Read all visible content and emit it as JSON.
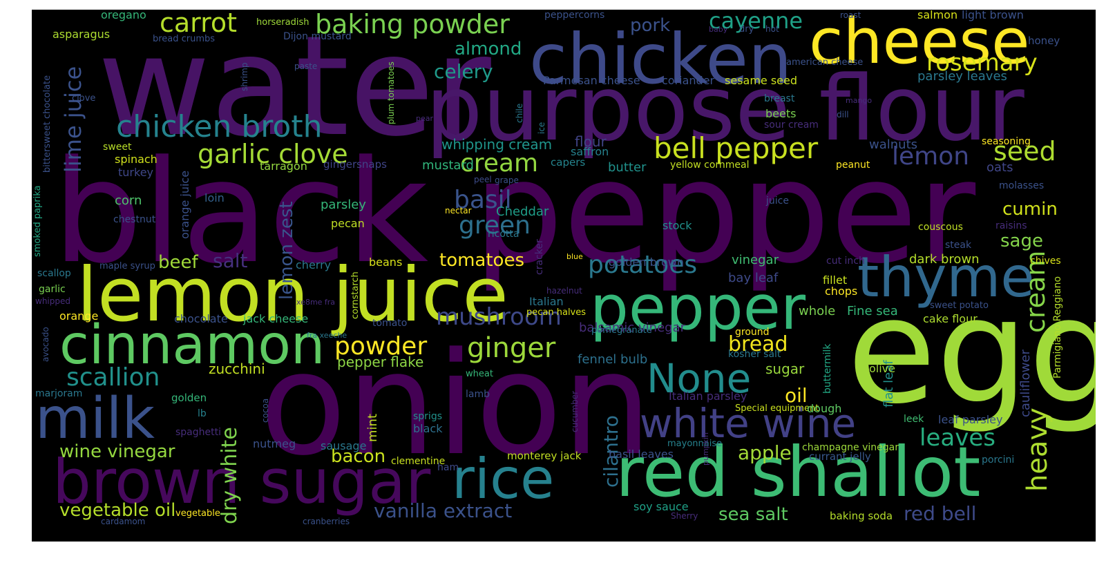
{
  "words": [
    {
      "text": "water",
      "color": "#471365"
    },
    {
      "text": "black pepper",
      "color": "#440154"
    },
    {
      "text": "onion",
      "color": "#440154"
    },
    {
      "text": "purpose flour",
      "color": "#481769"
    },
    {
      "text": "chicken",
      "color": "#3e4a89"
    },
    {
      "text": "cheese",
      "color": "#fde725"
    },
    {
      "text": "egg",
      "color": "#a0da39"
    },
    {
      "text": "lemon juice",
      "color": "#c2df23"
    },
    {
      "text": "cinnamon",
      "color": "#5ec962"
    },
    {
      "text": "thyme",
      "color": "#31688e"
    },
    {
      "text": "pepper",
      "color": "#35b779"
    },
    {
      "text": "red shallot",
      "color": "#3dbc74"
    },
    {
      "text": "brown sugar",
      "color": "#46085c"
    },
    {
      "text": "milk",
      "color": "#3b528b"
    },
    {
      "text": "rice",
      "color": "#26818e"
    },
    {
      "text": "white wine",
      "color": "#424186"
    },
    {
      "text": "None",
      "color": "#228d8d"
    },
    {
      "text": "chicken broth",
      "color": "#25838e"
    },
    {
      "text": "bell pepper",
      "color": "#c8e020"
    },
    {
      "text": "carrot",
      "color": "#b5de2b"
    },
    {
      "text": "baking powder",
      "color": "#7ad151"
    },
    {
      "text": "cayenne",
      "color": "#1fa187"
    },
    {
      "text": "rosemary",
      "color": "#d8e219"
    },
    {
      "text": "mushroom",
      "color": "#3e4989"
    },
    {
      "text": "ginger",
      "color": "#9dd93b"
    },
    {
      "text": "garlic clove",
      "color": "#a5db36"
    },
    {
      "text": "cream",
      "color": "#93d741"
    },
    {
      "text": "cream",
      "color": "#86d549"
    },
    {
      "text": "lemon",
      "color": "#404688"
    },
    {
      "text": "seed",
      "color": "#addc30"
    },
    {
      "text": "heavy",
      "color": "#addc30"
    },
    {
      "text": "potatoes",
      "color": "#2a788e"
    },
    {
      "text": "green",
      "color": "#2d708e"
    },
    {
      "text": "basil",
      "color": "#3a548c"
    },
    {
      "text": "powder",
      "color": "#fde725"
    },
    {
      "text": "scallion",
      "color": "#21918c"
    },
    {
      "text": "lime juice",
      "color": "#3b528b"
    },
    {
      "text": "lemon zest",
      "color": "#39558c"
    },
    {
      "text": "dry white",
      "color": "#7fd34e"
    },
    {
      "text": "cilantro",
      "color": "#2d708e"
    },
    {
      "text": "almond",
      "color": "#22a884"
    },
    {
      "text": "celery",
      "color": "#1f9a8a"
    },
    {
      "text": "pork",
      "color": "#3b528b"
    },
    {
      "text": "cumin",
      "color": "#d0e11c"
    },
    {
      "text": "sage",
      "color": "#84d44b"
    },
    {
      "text": "leaves",
      "color": "#28ae80"
    },
    {
      "text": "wine vinegar",
      "color": "#95d840"
    },
    {
      "text": "vegetable oil",
      "color": "#b5de2b"
    },
    {
      "text": "vanilla extract",
      "color": "#3b528b"
    },
    {
      "text": "sea salt",
      "color": "#5ec962"
    },
    {
      "text": "red bell",
      "color": "#3e4a89"
    },
    {
      "text": "bread",
      "color": "#f1e51d"
    },
    {
      "text": "oil",
      "color": "#fde725"
    },
    {
      "text": "apple",
      "color": "#a2da37"
    },
    {
      "text": "tomatoes",
      "color": "#fde725"
    },
    {
      "text": "beef",
      "color": "#a0da39"
    },
    {
      "text": "salt",
      "color": "#46307e"
    },
    {
      "text": "bacon",
      "color": "#cae11f"
    },
    {
      "text": "zucchini",
      "color": "#c2df23"
    },
    {
      "text": "pepper flake",
      "color": "#8ed645"
    },
    {
      "text": "balsamic vinegar",
      "color": "#472d7b"
    },
    {
      "text": "fennel bulb",
      "color": "#2d718e"
    },
    {
      "text": "sugar",
      "color": "#99d83d"
    },
    {
      "text": "whipping cream",
      "color": "#1f958b"
    },
    {
      "text": "flour",
      "color": "#414487"
    },
    {
      "text": "saffron",
      "color": "#26828e"
    },
    {
      "text": "butter",
      "color": "#20928c"
    },
    {
      "text": "capers",
      "color": "#25858e"
    },
    {
      "text": "mustard",
      "color": "#31b57b"
    },
    {
      "text": "tarragon",
      "color": "#94d840"
    },
    {
      "text": "gingersnaps",
      "color": "#404588"
    },
    {
      "text": "spinach",
      "color": "#d0e11c"
    },
    {
      "text": "turkey",
      "color": "#3f4788"
    },
    {
      "text": "sweet",
      "color": "#b8de29"
    },
    {
      "text": "corn",
      "color": "#4ec36b"
    },
    {
      "text": "loin",
      "color": "#34618d"
    },
    {
      "text": "parsley",
      "color": "#35b779"
    },
    {
      "text": "pecan",
      "color": "#c0df25"
    },
    {
      "text": "Cheddar",
      "color": "#1f9e89"
    },
    {
      "text": "nectar",
      "color": "#fde725"
    },
    {
      "text": "grape",
      "color": "#3b528b"
    },
    {
      "text": "peel",
      "color": "#3e4c8a"
    },
    {
      "text": "juice",
      "color": "#3b528b"
    },
    {
      "text": "ricotta",
      "color": "#2a788e"
    },
    {
      "text": "stock",
      "color": "#21918c"
    },
    {
      "text": "yellow cornmeal",
      "color": "#c2df23"
    },
    {
      "text": "peanut",
      "color": "#fde725"
    },
    {
      "text": "walnuts",
      "color": "#3b528b"
    },
    {
      "text": "oats",
      "color": "#404688"
    },
    {
      "text": "seasoning",
      "color": "#fde725"
    },
    {
      "text": "molasses",
      "color": "#3b528b"
    },
    {
      "text": "raisins",
      "color": "#472d7b"
    },
    {
      "text": "couscous",
      "color": "#c0df25"
    },
    {
      "text": "steak",
      "color": "#3b528b"
    },
    {
      "text": "chives",
      "color": "#d8e219"
    },
    {
      "text": "dark brown",
      "color": "#b5de2b"
    },
    {
      "text": "vinegar",
      "color": "#40bd72"
    },
    {
      "text": "bay leaf",
      "color": "#3e4a89"
    },
    {
      "text": "golden brown",
      "color": "#3b528b"
    },
    {
      "text": "fillet",
      "color": "#c8e020"
    },
    {
      "text": "chops",
      "color": "#fde725"
    },
    {
      "text": "cut inch",
      "color": "#472d7b"
    },
    {
      "text": "whole",
      "color": "#7ad151"
    },
    {
      "text": "Fine sea",
      "color": "#35b779"
    },
    {
      "text": "cake flour",
      "color": "#addc30"
    },
    {
      "text": "sweet potato",
      "color": "#3b528b"
    },
    {
      "text": "cauliflower",
      "color": "#3e4a89"
    },
    {
      "text": "Parmigiano Reggiano",
      "color": "#b5de2b"
    },
    {
      "text": "ground",
      "color": "#fde725"
    },
    {
      "text": "kosher salt",
      "color": "#2a788e"
    },
    {
      "text": "flat leaf",
      "color": "#21918c"
    },
    {
      "text": "olive",
      "color": "#9fda3a"
    },
    {
      "text": "buttermilk",
      "color": "#22a884"
    },
    {
      "text": "Italian parsley",
      "color": "#472d7b"
    },
    {
      "text": "Special equipment",
      "color": "#cae11f"
    },
    {
      "text": "dough",
      "color": "#5ec962"
    },
    {
      "text": "leek",
      "color": "#40bd72"
    },
    {
      "text": "leaf parsley",
      "color": "#3b528b"
    },
    {
      "text": "champagne vinegar",
      "color": "#9dd93b"
    },
    {
      "text": "mayonnaise",
      "color": "#26828e"
    },
    {
      "text": "currant jelly",
      "color": "#38588c"
    },
    {
      "text": "porcini",
      "color": "#2a788e"
    },
    {
      "text": "basil leaves",
      "color": "#3b528b"
    },
    {
      "text": "monterey jack",
      "color": "#c2df23"
    },
    {
      "text": "soy sauce",
      "color": "#1fa187"
    },
    {
      "text": "baking soda",
      "color": "#b5de2b"
    },
    {
      "text": "Sherry",
      "color": "#472d7b"
    },
    {
      "text": "pumpkin",
      "color": "#472d7b"
    },
    {
      "text": "cucumber",
      "color": "#472d7b"
    },
    {
      "text": "clementine",
      "color": "#c8e020"
    },
    {
      "text": "ham",
      "color": "#3e4a89"
    },
    {
      "text": "sausage",
      "color": "#2a788e"
    },
    {
      "text": "mint",
      "color": "#c2df23"
    },
    {
      "text": "lamb",
      "color": "#3b528b"
    },
    {
      "text": "sprigs",
      "color": "#21918c"
    },
    {
      "text": "black",
      "color": "#2d708e"
    },
    {
      "text": "wheat",
      "color": "#35b779"
    },
    {
      "text": "nutmeg",
      "color": "#3b528b"
    },
    {
      "text": "spaghetti",
      "color": "#472d7b"
    },
    {
      "text": "cocoa",
      "color": "#3b528b"
    },
    {
      "text": "lb",
      "color": "#26828e"
    },
    {
      "text": "golden",
      "color": "#35b779"
    },
    {
      "text": "marjoram",
      "color": "#2a788e"
    },
    {
      "text": "avocado",
      "color": "#3b528b"
    },
    {
      "text": "orange",
      "color": "#fde725"
    },
    {
      "text": "garlic",
      "color": "#7ad151"
    },
    {
      "text": "whipped",
      "color": "#472d7b"
    },
    {
      "text": "scallop",
      "color": "#2a788e"
    },
    {
      "text": "chestnut",
      "color": "#3b528b"
    },
    {
      "text": "smoked paprika",
      "color": "#22a884"
    },
    {
      "text": "maple syrup",
      "color": "#3b528b"
    },
    {
      "text": "cherry",
      "color": "#2a788e"
    },
    {
      "text": "beans",
      "color": "#d8e219"
    },
    {
      "text": "cornstarch",
      "color": "#b5de2b"
    },
    {
      "text": "xe8me fra",
      "color": "#472d7b"
    },
    {
      "text": "fra xeeche",
      "color": "#2a788e"
    },
    {
      "text": "tomato",
      "color": "#3b528b"
    },
    {
      "text": "chocolate",
      "color": "#3b528b"
    },
    {
      "text": "jack cheese",
      "color": "#35b779"
    },
    {
      "text": "Italian",
      "color": "#2a788e"
    },
    {
      "text": "pecan halves",
      "color": "#d8e219"
    },
    {
      "text": "pomegranate",
      "color": "#2a788e"
    },
    {
      "text": "hazelnut",
      "color": "#472d7b"
    },
    {
      "text": "blue",
      "color": "#fde725"
    },
    {
      "text": "cracker",
      "color": "#472d7b"
    },
    {
      "text": "orange juice",
      "color": "#3b528b"
    },
    {
      "text": "vegetable",
      "color": "#fde725"
    },
    {
      "text": "cardamom",
      "color": "#3b528b"
    },
    {
      "text": "cranberries",
      "color": "#3b528b"
    },
    {
      "text": "oregano",
      "color": "#35b779"
    },
    {
      "text": "asparagus",
      "color": "#addc30"
    },
    {
      "text": "bread crumbs",
      "color": "#3b528b"
    },
    {
      "text": "horseradish",
      "color": "#9fda3a"
    },
    {
      "text": "Dijon mustard",
      "color": "#3b528b"
    },
    {
      "text": "bittersweet chocolate",
      "color": "#3b528b"
    },
    {
      "text": "clove",
      "color": "#3b528b"
    },
    {
      "text": "shrimp",
      "color": "#3b528b"
    },
    {
      "text": "paste",
      "color": "#3b528b"
    },
    {
      "text": "plum tomatoes",
      "color": "#7ad151"
    },
    {
      "text": "pear",
      "color": "#472d7b"
    },
    {
      "text": "chile",
      "color": "#2a788e"
    },
    {
      "text": "ice",
      "color": "#2a788e"
    },
    {
      "text": "Parmesan cheese",
      "color": "#3b528b"
    },
    {
      "text": "coriander",
      "color": "#3b528b"
    },
    {
      "text": "sesame seed",
      "color": "#cae11f"
    },
    {
      "text": "breast",
      "color": "#2a788e"
    },
    {
      "text": "beets",
      "color": "#7ad151"
    },
    {
      "text": "sour cream",
      "color": "#472d7b"
    },
    {
      "text": "mango",
      "color": "#472d7b"
    },
    {
      "text": "dill",
      "color": "#3b528b"
    },
    {
      "text": "peppercorns",
      "color": "#3b528b"
    },
    {
      "text": "baby",
      "color": "#472d7b"
    },
    {
      "text": "dry",
      "color": "#3b528b"
    },
    {
      "text": "hot",
      "color": "#3b528b"
    },
    {
      "text": "roast",
      "color": "#3b528b"
    },
    {
      "text": "salmon",
      "color": "#d8e219"
    },
    {
      "text": "light brown",
      "color": "#3b528b"
    },
    {
      "text": "honey",
      "color": "#3b528b"
    },
    {
      "text": "american cheese",
      "color": "#3b528b"
    },
    {
      "text": "parsley leaves",
      "color": "#2a788e"
    }
  ]
}
